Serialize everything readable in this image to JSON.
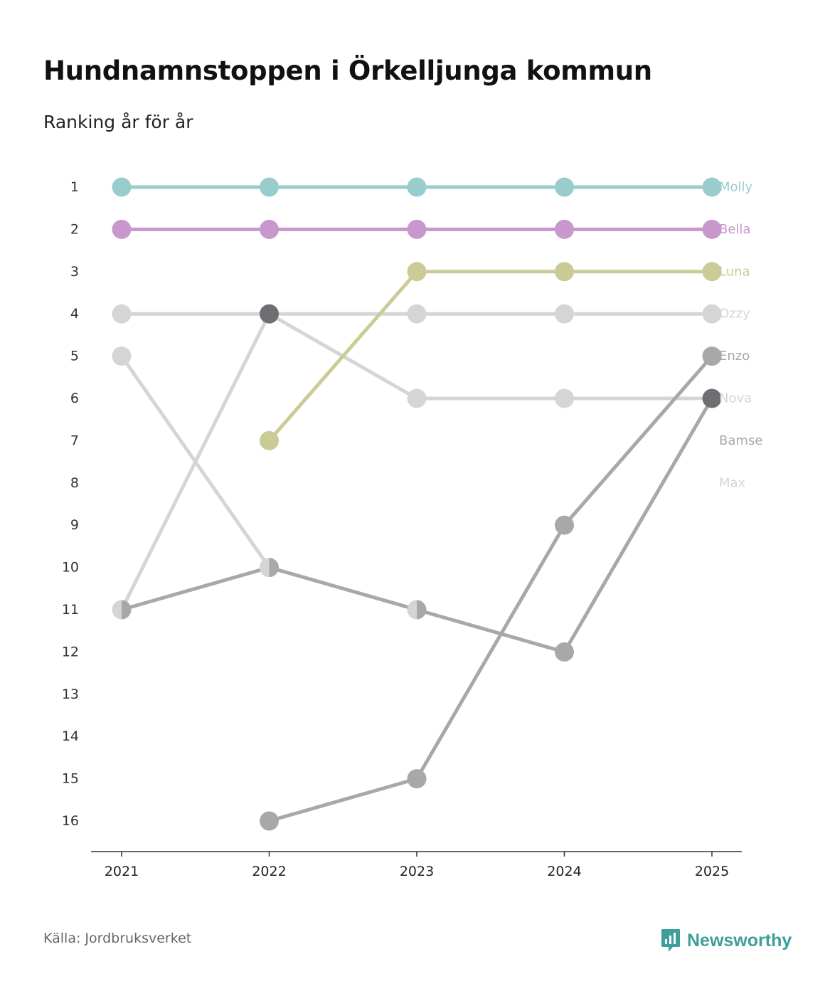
{
  "header": {
    "title": "Hundnamnstoppen i Örkelljunga kommun",
    "subtitle": "Ranking år för år"
  },
  "footer": {
    "source": "Källa: Jordbruksverket",
    "brand": "Newsworthy",
    "brand_color": "#3e9e98",
    "logo_icon": "bar-chart-speech-bubble-icon"
  },
  "chart_data": {
    "type": "line",
    "subtype": "bump",
    "title": "Hundnamnstoppen i Örkelljunga kommun",
    "subtitle": "Ranking år för år",
    "xlabel": "",
    "ylabel": "",
    "x": [
      "2021",
      "2022",
      "2023",
      "2024",
      "2025"
    ],
    "ylim": [
      1,
      16
    ],
    "y_inverted": true,
    "y_ticks": [
      "1",
      "2",
      "3",
      "4",
      "5",
      "6",
      "7",
      "8",
      "9",
      "10",
      "11",
      "12",
      "13",
      "14",
      "15",
      "16"
    ],
    "series": [
      {
        "name": "Max",
        "color": "#d5d5d5",
        "values": [
          5,
          10,
          11,
          null,
          null
        ]
      },
      {
        "name": "Bamse",
        "color": "#a8a8a8",
        "values": [
          11,
          10,
          11,
          12,
          6
        ]
      },
      {
        "name": "Nova",
        "color": "#d5d5d5",
        "values": [
          4,
          4,
          6,
          6,
          6
        ]
      },
      {
        "name": "Enzo",
        "color": "#a8a8a8",
        "values": [
          null,
          16,
          15,
          9,
          5
        ]
      },
      {
        "name": "Ozzy",
        "color": "#d5d5d5",
        "values": [
          11,
          4,
          4,
          4,
          4
        ]
      },
      {
        "name": "Luna",
        "color": "#cbcb98",
        "values": [
          null,
          7,
          3,
          3,
          3
        ]
      },
      {
        "name": "Bella",
        "color": "#c897cc",
        "values": [
          2,
          2,
          2,
          2,
          2
        ]
      },
      {
        "name": "Molly",
        "color": "#99cccc",
        "values": [
          1,
          1,
          1,
          1,
          1
        ]
      }
    ],
    "end_labels": [
      {
        "name": "Molly",
        "rank": 1,
        "color": "#99cccc"
      },
      {
        "name": "Bella",
        "rank": 2,
        "color": "#c897cc"
      },
      {
        "name": "Luna",
        "rank": 3,
        "color": "#cbcb98"
      },
      {
        "name": "Ozzy",
        "rank": 4,
        "color": "#d5d5d5"
      },
      {
        "name": "Enzo",
        "rank": 5,
        "color": "#a8a8a8"
      },
      {
        "name": "Nova",
        "rank": 6,
        "color": "#d5d5d5"
      },
      {
        "name": "Bamse",
        "rank": 7,
        "color": "#a8a8a8"
      },
      {
        "name": "Max",
        "rank": 8,
        "color": "#d5d5d5"
      }
    ],
    "overlap_marker_color": "#6e6e73"
  }
}
